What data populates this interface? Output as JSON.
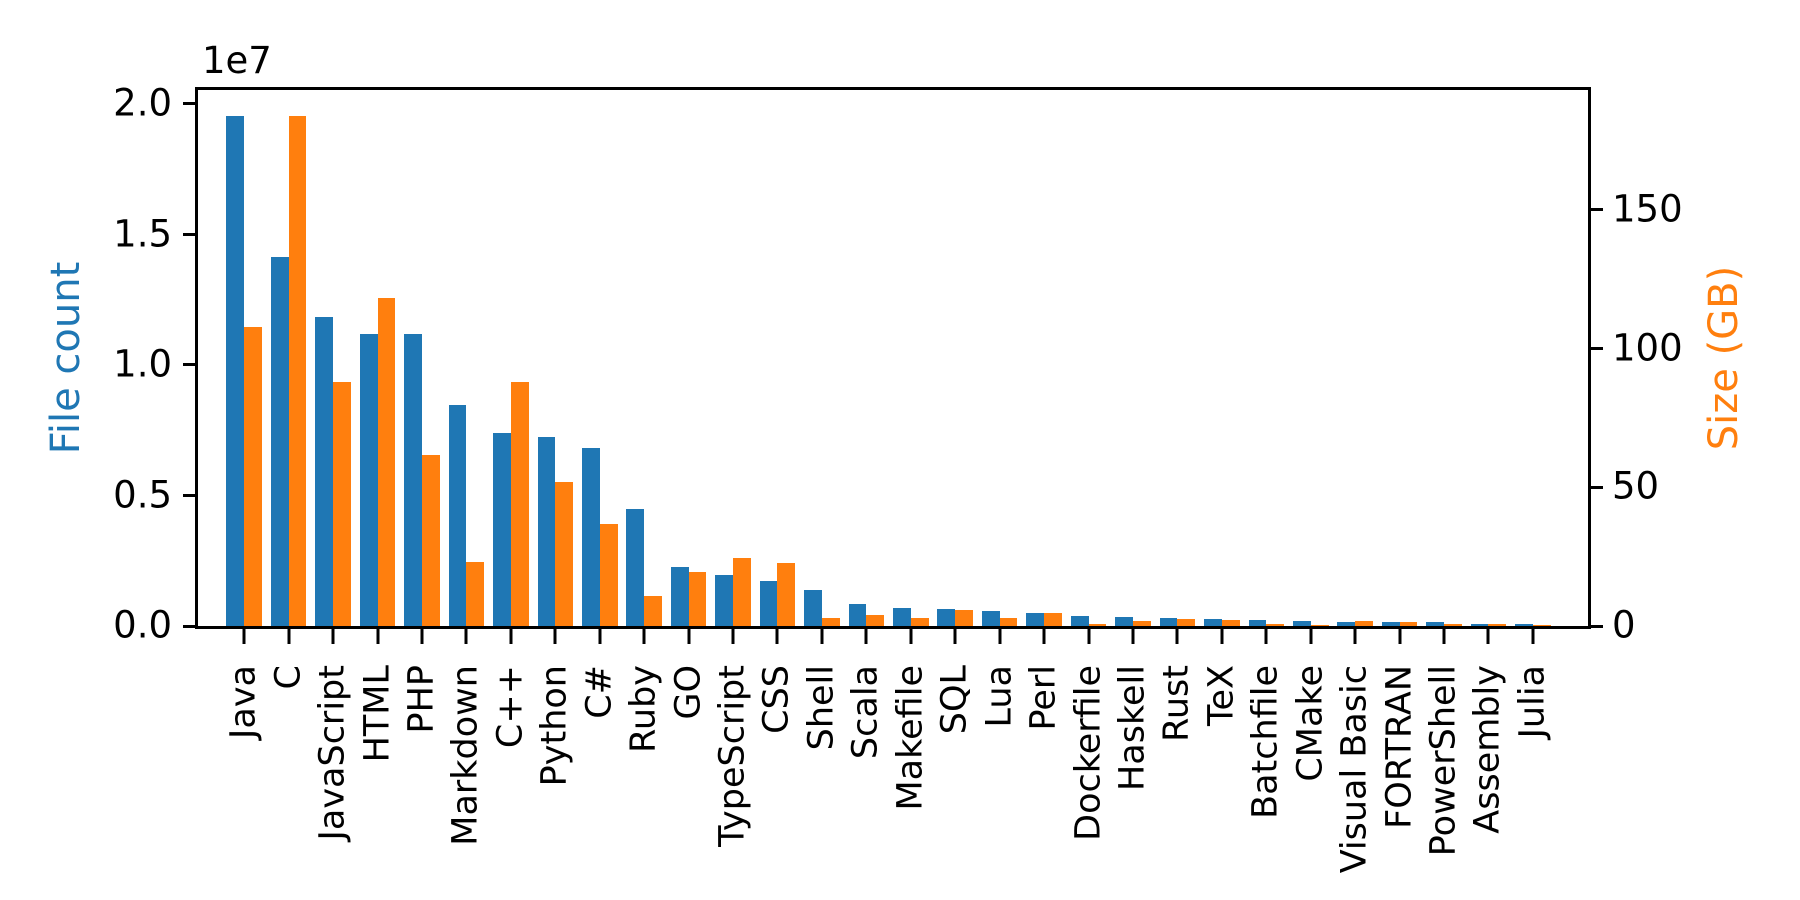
{
  "figure": {
    "background": "#ffffff",
    "left_axis": {
      "label": "File count",
      "color": "#1f77b4",
      "offset_text": "1e7",
      "tick_labels": [
        "0.0",
        "0.5",
        "1.0",
        "1.5",
        "2.0"
      ],
      "tick_values": [
        0,
        5000000,
        10000000,
        15000000,
        20000000
      ],
      "max": 20525600
    },
    "right_axis": {
      "label": "Size (GB)",
      "color": "#ff7f0e",
      "tick_labels": [
        "0",
        "50",
        "100",
        "150"
      ],
      "tick_values": [
        0,
        50,
        100,
        150
      ],
      "max": 193.02
    }
  },
  "chart_data": {
    "type": "bar",
    "title": "",
    "grid": false,
    "legend": "none",
    "x_tick_rotation": 90,
    "categories": [
      "Java",
      "C",
      "JavaScript",
      "HTML",
      "PHP",
      "Markdown",
      "C++",
      "Python",
      "C#",
      "Ruby",
      "GO",
      "TypeScript",
      "CSS",
      "Shell",
      "Scala",
      "Makefile",
      "SQL",
      "Lua",
      "Perl",
      "Dockerfile",
      "Haskell",
      "Rust",
      "TeX",
      "Batchfile",
      "CMake",
      "Visual Basic",
      "FORTRAN",
      "PowerShell",
      "Assembly",
      "Julia"
    ],
    "series": [
      {
        "name": "File count",
        "axis": "left",
        "color": "#1f77b4",
        "values": [
          19548190,
          14143113,
          11839883,
          11178557,
          11177610,
          8464626,
          7380520,
          7226626,
          6811652,
          4473331,
          2265436,
          1940406,
          1734406,
          1385648,
          835755,
          679430,
          656671,
          578554,
          497949,
          366505,
          340623,
          322431,
          251015,
          236945,
          175282,
          155652,
          142038,
          136846,
          82905,
          58317
        ]
      },
      {
        "name": "Size (GB)",
        "axis": "right",
        "color": "#ff7f0e",
        "values": [
          107.7,
          183.83,
          87.82,
          118.12,
          61.41,
          23.09,
          87.73,
          52.03,
          36.83,
          10.95,
          19.28,
          24.59,
          22.67,
          3.01,
          3.87,
          2.92,
          5.67,
          2.81,
          4.7,
          0.71,
          1.85,
          2.68,
          2.15,
          0.7,
          0.54,
          1.91,
          1.62,
          0.69,
          0.78,
          0.29
        ]
      }
    ],
    "left_ylim": [
      0,
      20525600
    ],
    "right_ylim": [
      0,
      193.02
    ]
  }
}
